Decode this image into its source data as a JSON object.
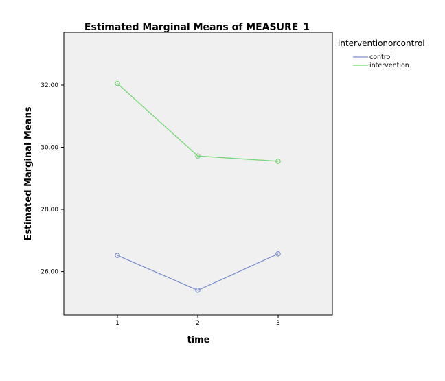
{
  "chart_data": {
    "type": "line",
    "title": "Estimated Marginal Means of MEASURE_1",
    "xlabel": "time",
    "ylabel": "Estimated Marginal Means",
    "categories": [
      "1",
      "2",
      "3"
    ],
    "ylim": [
      24.6,
      33.7
    ],
    "yticks": [
      26.0,
      28.0,
      30.0,
      32.0
    ],
    "ytick_labels": [
      "26.00",
      "28.00",
      "30.00",
      "32.00"
    ],
    "grid": false,
    "legend": {
      "title": "interventionorcontrol",
      "placement": "outside-right"
    },
    "background": "#f0f0f0",
    "series": [
      {
        "name": "control",
        "values": [
          26.52,
          25.4,
          26.57
        ],
        "color": "#7b8fce"
      },
      {
        "name": "intervention",
        "values": [
          32.05,
          29.72,
          29.55
        ],
        "color": "#74d674"
      }
    ]
  }
}
